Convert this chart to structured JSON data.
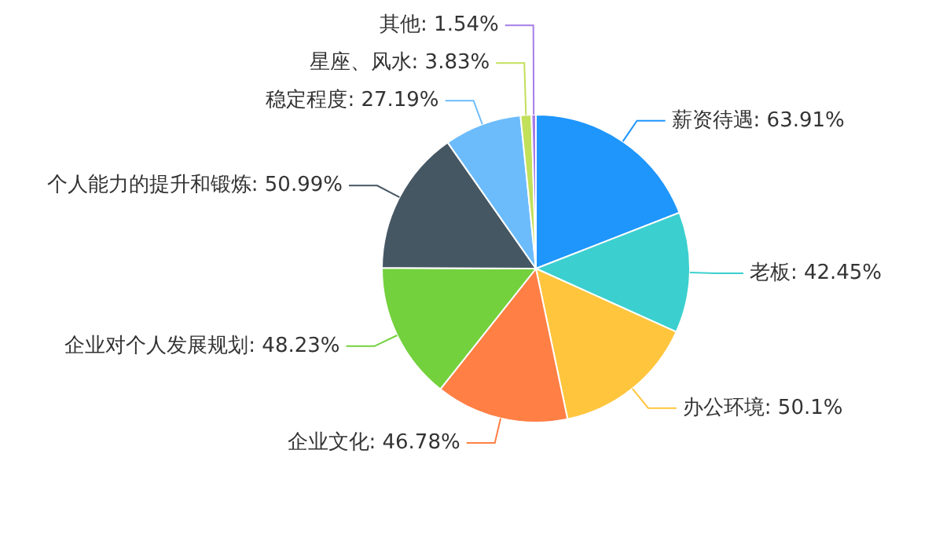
{
  "chart_data": {
    "type": "pie",
    "categories": [
      "薪资待遇",
      "老板",
      "办公环境",
      "企业文化",
      "企业对个人发展规划",
      "个人能力的提升和锻炼",
      "稳定程度",
      "星座、风水",
      "其他"
    ],
    "values": [
      63.91,
      42.45,
      50.1,
      46.78,
      48.23,
      50.99,
      27.19,
      3.83,
      1.54
    ],
    "value_labels": [
      "63.91%",
      "42.45%",
      "50.1%",
      "46.78%",
      "48.23%",
      "50.99%",
      "27.19%",
      "3.83%",
      "1.54%"
    ],
    "colors": [
      "#1e96fc",
      "#3ccfcf",
      "#ffc53d",
      "#ff7f45",
      "#73d13d",
      "#465764",
      "#6cbcfc",
      "#c2e05a",
      "#a77de8"
    ]
  }
}
